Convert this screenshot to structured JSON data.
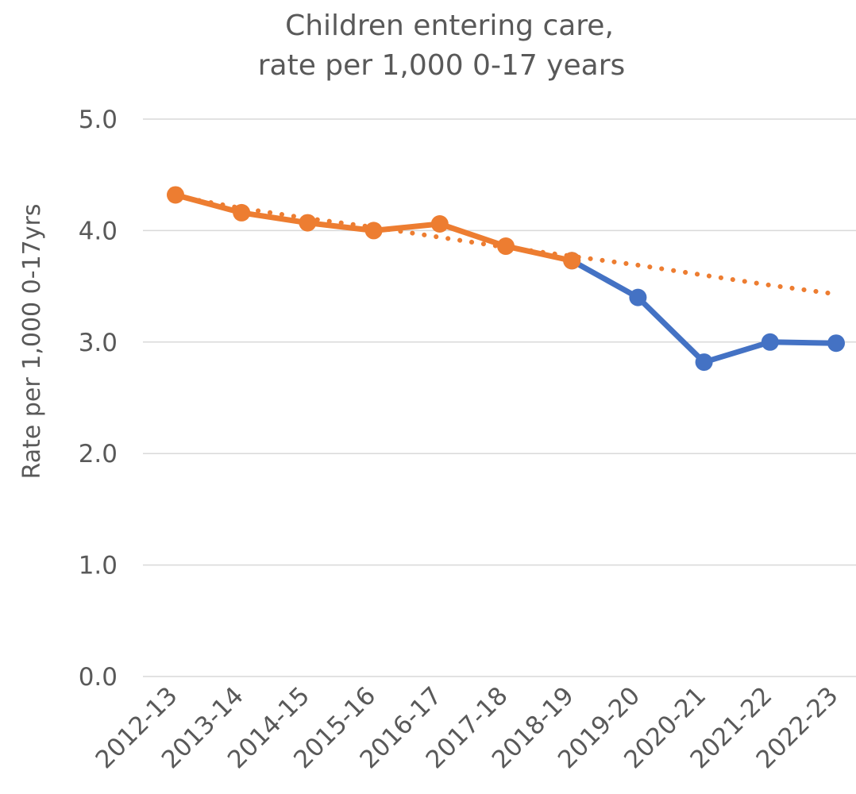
{
  "chart_data": {
    "type": "line",
    "title_lines": [
      "Children entering care,",
      "rate per 1,000 0-17 years"
    ],
    "ylabel": "Rate per 1,000 0-17yrs",
    "xlabel": "",
    "categories": [
      "2012-13",
      "2013-14",
      "2014-15",
      "2015-16",
      "2016-17",
      "2017-18",
      "2018-19",
      "2019-20",
      "2020-21",
      "2021-22",
      "2022-23"
    ],
    "ylim": [
      0,
      5
    ],
    "yticks": [
      "0.0",
      "1.0",
      "2.0",
      "3.0",
      "4.0",
      "5.0"
    ],
    "grid": true,
    "series": [
      {
        "values": [
          null,
          null,
          null,
          null,
          null,
          null,
          3.73,
          3.4,
          2.82,
          3.0,
          2.99
        ],
        "color": "#4472C4",
        "style": "solid-markers"
      },
      {
        "values": [
          4.32,
          4.16,
          4.07,
          4.0,
          4.06,
          3.86,
          3.73,
          null,
          null,
          null,
          null
        ],
        "color": "#ED7D31",
        "style": "solid-markers"
      },
      {
        "values": [
          4.31,
          4.2,
          4.11,
          4.03,
          3.94,
          3.85,
          3.77,
          3.69,
          3.6,
          3.51,
          3.43
        ],
        "color": "#ED7D31",
        "style": "dotted-trend"
      }
    ]
  }
}
